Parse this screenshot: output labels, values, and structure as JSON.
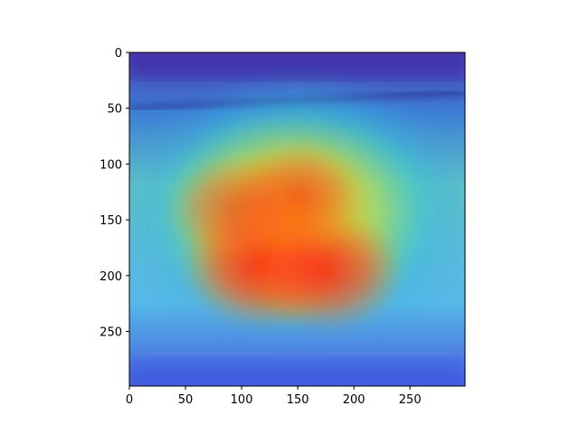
{
  "chart_data": {
    "type": "heatmap",
    "title": "",
    "xlabel": "",
    "ylabel": "",
    "description_free": true,
    "xlim": [
      0,
      299
    ],
    "ylim": [
      299,
      0
    ],
    "x_ticks": [
      0,
      50,
      100,
      150,
      200,
      250
    ],
    "y_ticks": [
      0,
      50,
      100,
      150,
      200,
      250
    ],
    "colormap": "jet",
    "grid": false,
    "heat_peaks": [
      {
        "x": 120,
        "y": 190,
        "intensity": 1.0
      },
      {
        "x": 175,
        "y": 195,
        "intensity": 0.9
      },
      {
        "x": 150,
        "y": 130,
        "intensity": 0.7
      },
      {
        "x": 95,
        "y": 140,
        "intensity": 0.6
      }
    ],
    "colors": {
      "hot": "#ff2a1a",
      "warm": "#ffd400",
      "mid": "#36d6a8",
      "cool": "#2b4de0",
      "cold": "#3a1aa0"
    }
  }
}
